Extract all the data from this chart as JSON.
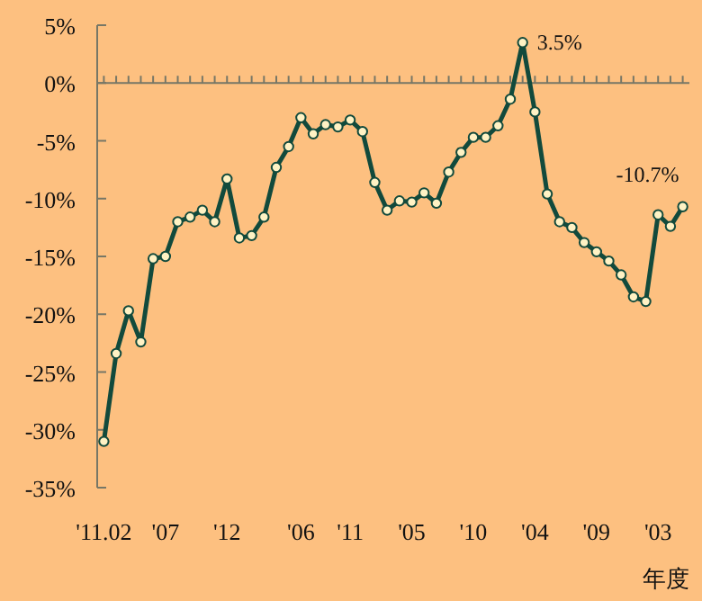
{
  "chart_data": {
    "type": "line",
    "xlabel": "年度",
    "categories": [
      "'11.02",
      null,
      null,
      null,
      null,
      "'07",
      null,
      null,
      null,
      null,
      "'12",
      null,
      null,
      null,
      null,
      null,
      "'06",
      null,
      null,
      null,
      "'11",
      null,
      null,
      null,
      null,
      "'05",
      null,
      null,
      null,
      null,
      "'10",
      null,
      null,
      null,
      null,
      "'04",
      null,
      null,
      null,
      null,
      "'09",
      null,
      null,
      null,
      null,
      "'03",
      null,
      null
    ],
    "series": [
      {
        "color": "#124a3c",
        "values": [
          -31.0,
          -23.4,
          -19.7,
          -22.4,
          -15.2,
          -15.0,
          -12.0,
          -11.6,
          -11.0,
          -12.0,
          -8.3,
          -13.4,
          -13.2,
          -11.6,
          -7.3,
          -5.5,
          -3.0,
          -4.4,
          -3.6,
          -3.8,
          -3.2,
          -4.2,
          -8.6,
          -11.0,
          -10.2,
          -10.3,
          -9.5,
          -10.4,
          -7.7,
          -6.0,
          -4.7,
          -4.7,
          -3.7,
          -1.4,
          3.5,
          -2.5,
          -9.6,
          -12.0,
          -12.5,
          -13.8,
          -14.6,
          -15.4,
          -16.6,
          -18.5,
          -18.9,
          -11.4,
          -12.4,
          -10.7
        ],
        "value_labels": [
          null,
          null,
          null,
          null,
          null,
          null,
          null,
          null,
          null,
          null,
          null,
          null,
          null,
          null,
          null,
          null,
          null,
          null,
          null,
          null,
          null,
          null,
          null,
          null,
          null,
          null,
          null,
          null,
          null,
          null,
          null,
          null,
          null,
          null,
          "3.5%",
          null,
          null,
          null,
          null,
          null,
          null,
          null,
          null,
          null,
          null,
          null,
          null,
          "-10.7%"
        ]
      }
    ],
    "ylim": [
      -35,
      5
    ],
    "yticks": [
      {
        "value": 5,
        "label": "5%"
      },
      {
        "value": 0,
        "label": "0%"
      },
      {
        "value": -5,
        "label": "-5%"
      },
      {
        "value": -10,
        "label": "-10%"
      },
      {
        "value": -15,
        "label": "-15%"
      },
      {
        "value": -20,
        "label": "-20%"
      },
      {
        "value": -25,
        "label": "-25%"
      },
      {
        "value": -30,
        "label": "-30%"
      },
      {
        "value": -35,
        "label": "-35%"
      }
    ],
    "marker": "circle",
    "line_style": "solid"
  }
}
